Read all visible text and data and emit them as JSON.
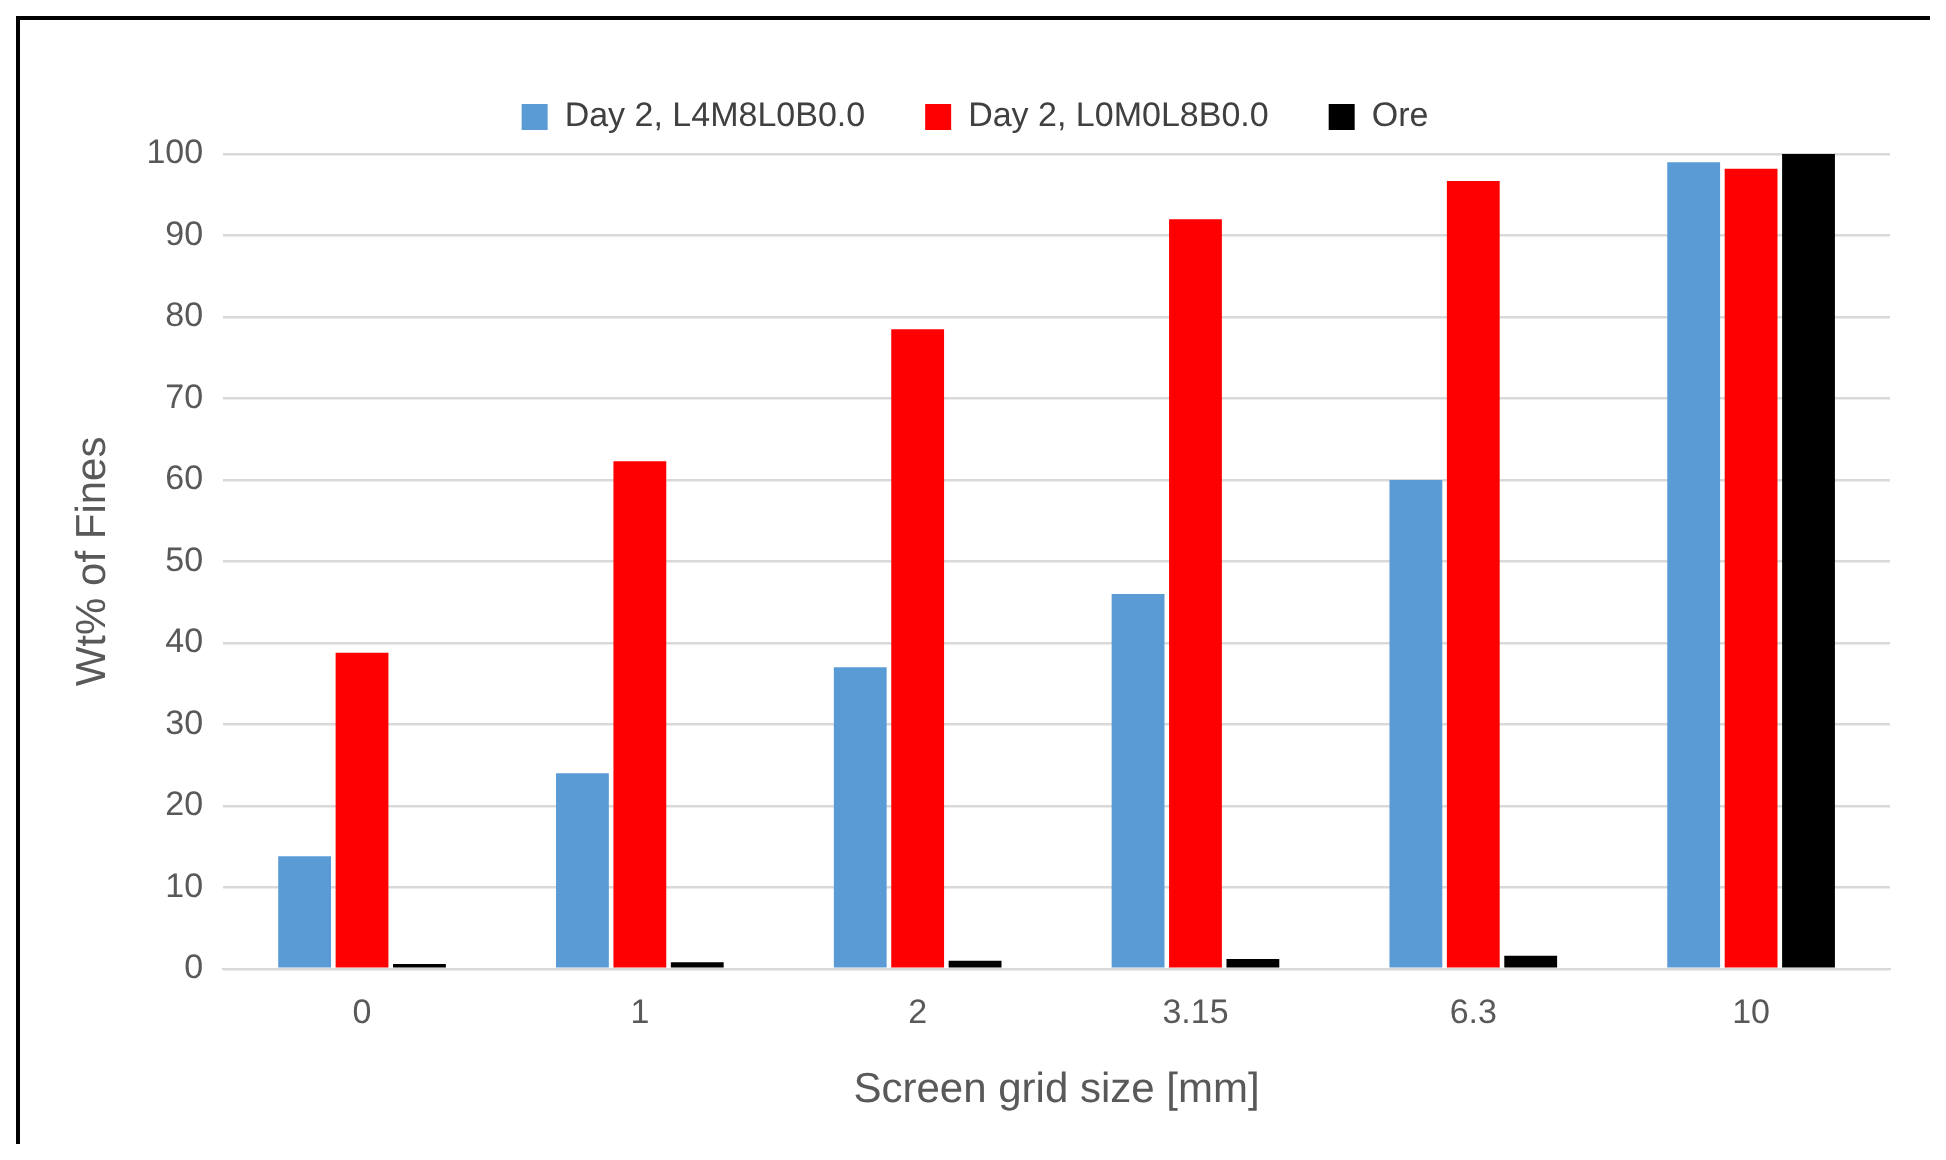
{
  "chart_data": {
    "type": "bar",
    "xlabel": "Screen grid size [mm]",
    "ylabel": "Wt% of Fines",
    "categories": [
      "0",
      "1",
      "2",
      "3.15",
      "6.3",
      "10"
    ],
    "series": [
      {
        "name": "Day 2, L4M8L0B0.0",
        "color": "#5b9bd5",
        "values": [
          13.8,
          24,
          37,
          46,
          60,
          99
        ]
      },
      {
        "name": "Day 2, L0M0L8B0.0",
        "color": "#ff0000",
        "values": [
          38.8,
          62.3,
          78.5,
          92,
          96.7,
          98.2
        ]
      },
      {
        "name": "Ore",
        "color": "#000000",
        "values": [
          0.6,
          0.8,
          1.0,
          1.2,
          1.6,
          100
        ]
      }
    ],
    "ylim": [
      0,
      100
    ],
    "yticks": [
      0,
      10,
      20,
      30,
      40,
      50,
      60,
      70,
      80,
      90,
      100
    ],
    "grid": "y",
    "legend": "top"
  }
}
